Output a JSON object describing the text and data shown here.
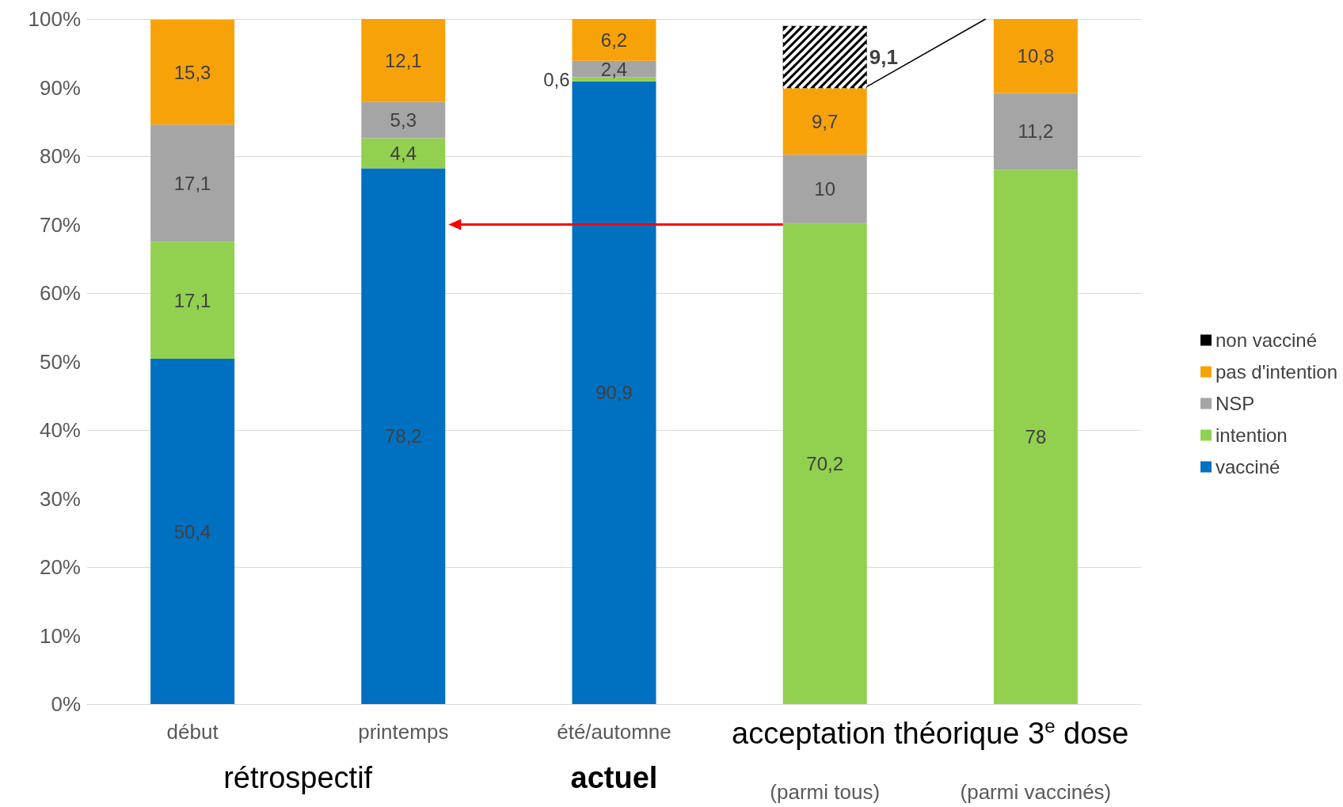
{
  "chart_data": {
    "type": "bar",
    "stacked": true,
    "categories": [
      "début",
      "printemps",
      "été/automne",
      "(parmi tous)",
      "(parmi vaccinés)"
    ],
    "series": [
      {
        "name": "vacciné",
        "color": "#0070c0",
        "values": [
          50.4,
          78.2,
          90.9,
          null,
          null
        ],
        "value_labels": [
          "50,4",
          "78,2",
          "90,9",
          null,
          null
        ]
      },
      {
        "name": "intention",
        "color": "#92d050",
        "values": [
          17.1,
          4.4,
          0.6,
          70.2,
          78
        ],
        "value_labels": [
          "17,1",
          "4,4",
          "0,6",
          "70,2",
          "78"
        ]
      },
      {
        "name": "NSP",
        "color": "#a5a5a5",
        "values": [
          17.1,
          5.3,
          2.4,
          10,
          11.2
        ],
        "value_labels": [
          "17,1",
          "5,3",
          "2,4",
          "10",
          "11,2"
        ]
      },
      {
        "name": "pas d'intention",
        "color": "#f8a20a",
        "values": [
          15.3,
          12.1,
          6.2,
          9.7,
          10.8
        ],
        "value_labels": [
          "15,3",
          "12,1",
          "6,2",
          "9,7",
          "10,8"
        ]
      },
      {
        "name": "non vacciné",
        "color": "#000000",
        "values": [
          null,
          null,
          null,
          9.1,
          null
        ],
        "value_labels": [
          null,
          null,
          null,
          "9,1",
          null
        ]
      }
    ],
    "ylim": [
      0,
      100
    ],
    "yticks": [
      {
        "value": 0,
        "label": "0%"
      },
      {
        "value": 10,
        "label": "10%"
      },
      {
        "value": 20,
        "label": "20%"
      },
      {
        "value": 30,
        "label": "30%"
      },
      {
        "value": 40,
        "label": "40%"
      },
      {
        "value": 50,
        "label": "50%"
      },
      {
        "value": 60,
        "label": "60%"
      },
      {
        "value": 70,
        "label": "70%"
      },
      {
        "value": 80,
        "label": "80%"
      },
      {
        "value": 90,
        "label": "90%"
      },
      {
        "value": 100,
        "label": "100%"
      }
    ],
    "grid": "y",
    "legend": "right",
    "annotations": [
      "rétrospectif",
      "actuel",
      "acceptation théorique 3$^{e}$ dose"
    ]
  }
}
